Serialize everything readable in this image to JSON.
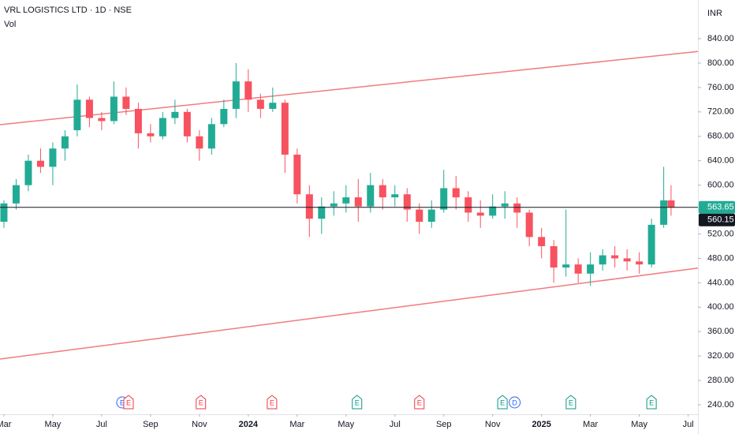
{
  "chart_data": {
    "type": "candlestick",
    "title": "VRL LOGISTICS LTD · 1D · NSE",
    "subtitle": "Vol",
    "y_axis_label": "INR",
    "up_color": "#22ab94",
    "down_color": "#f7525f",
    "x": [
      0,
      0.5,
      1,
      1.5,
      2,
      2.5,
      3,
      3.5,
      4,
      4.5,
      5,
      5.5,
      6,
      6.5,
      7,
      7.5,
      8,
      8.5,
      9,
      9.5,
      10,
      10.5,
      11,
      11.5,
      12,
      12.5,
      13,
      13.5,
      14,
      14.5,
      15,
      15.5,
      16,
      16.5,
      17,
      17.5,
      18,
      18.5,
      19,
      19.5,
      20,
      20.5,
      21,
      21.5,
      22,
      22.5,
      23,
      23.5,
      24,
      24.5,
      25,
      25.5,
      26,
      26.5,
      27,
      27.3
    ],
    "open": [
      540,
      570,
      600,
      640,
      630,
      660,
      690,
      740,
      710,
      705,
      745,
      725,
      685,
      680,
      710,
      720,
      680,
      660,
      700,
      725,
      770,
      740,
      725,
      735,
      650,
      585,
      545,
      565,
      570,
      580,
      565,
      600,
      580,
      585,
      560,
      540,
      560,
      595,
      580,
      555,
      550,
      565,
      570,
      555,
      515,
      500,
      465,
      470,
      455,
      470,
      485,
      480,
      475,
      470,
      535,
      575
    ],
    "high": [
      575,
      610,
      650,
      660,
      670,
      690,
      765,
      745,
      720,
      770,
      760,
      735,
      700,
      720,
      740,
      725,
      690,
      710,
      740,
      800,
      790,
      750,
      760,
      740,
      660,
      600,
      580,
      590,
      600,
      610,
      620,
      610,
      600,
      595,
      570,
      575,
      625,
      615,
      590,
      575,
      585,
      590,
      580,
      560,
      530,
      510,
      560,
      480,
      490,
      495,
      500,
      495,
      490,
      545,
      630,
      600
    ],
    "low": [
      530,
      560,
      590,
      620,
      600,
      640,
      680,
      695,
      690,
      700,
      715,
      660,
      670,
      675,
      700,
      670,
      640,
      650,
      695,
      710,
      720,
      710,
      720,
      620,
      570,
      515,
      520,
      550,
      555,
      540,
      555,
      560,
      565,
      540,
      520,
      530,
      555,
      560,
      540,
      530,
      545,
      545,
      530,
      500,
      480,
      440,
      450,
      440,
      435,
      460,
      465,
      460,
      455,
      465,
      530,
      550
    ],
    "close": [
      570,
      600,
      640,
      630,
      660,
      680,
      740,
      710,
      705,
      745,
      725,
      685,
      680,
      710,
      720,
      680,
      660,
      700,
      725,
      770,
      740,
      725,
      735,
      650,
      585,
      545,
      565,
      570,
      580,
      565,
      600,
      580,
      585,
      560,
      540,
      560,
      595,
      580,
      555,
      550,
      565,
      570,
      555,
      515,
      500,
      465,
      470,
      455,
      470,
      485,
      480,
      475,
      470,
      535,
      575,
      563.65
    ],
    "xlim": [
      -0.16,
      28.4
    ],
    "xticks": [
      {
        "value": 0,
        "label": "Mar"
      },
      {
        "value": 2,
        "label": "May"
      },
      {
        "value": 4,
        "label": "Jul"
      },
      {
        "value": 6,
        "label": "Sep"
      },
      {
        "value": 8,
        "label": "Nov"
      },
      {
        "value": 10,
        "label": "2024"
      },
      {
        "value": 12,
        "label": "Mar"
      },
      {
        "value": 14,
        "label": "May"
      },
      {
        "value": 16,
        "label": "Jul"
      },
      {
        "value": 18,
        "label": "Sep"
      },
      {
        "value": 20,
        "label": "Nov"
      },
      {
        "value": 22,
        "label": "2025"
      },
      {
        "value": 24,
        "label": "Mar"
      },
      {
        "value": 26,
        "label": "May"
      },
      {
        "value": 28,
        "label": "Jul"
      }
    ],
    "ylim": [
      224.5,
      903.4
    ],
    "yticks": [
      {
        "value": 240,
        "label": "240.00"
      },
      {
        "value": 280,
        "label": "280.00"
      },
      {
        "value": 320,
        "label": "320.00"
      },
      {
        "value": 360,
        "label": "360.00"
      },
      {
        "value": 400,
        "label": "400.00"
      },
      {
        "value": 440,
        "label": "440.00"
      },
      {
        "value": 480,
        "label": "480.00"
      },
      {
        "value": 520,
        "label": "520.00"
      },
      {
        "value": 560,
        "label": "560.00"
      },
      {
        "value": 600,
        "label": "600.00"
      },
      {
        "value": 640,
        "label": "640.00"
      },
      {
        "value": 680,
        "label": "680.00"
      },
      {
        "value": 720,
        "label": "720.00"
      },
      {
        "value": 760,
        "label": "760.00"
      },
      {
        "value": 800,
        "label": "800.00"
      },
      {
        "value": 840,
        "label": "840.00"
      }
    ],
    "trendlines": [
      {
        "color": "#f07c80",
        "x": [
          -0.16,
          28.4
        ],
        "y": [
          699,
          819
        ]
      },
      {
        "color": "#f07c80",
        "x": [
          -0.16,
          28.4
        ],
        "y": [
          315,
          464
        ]
      }
    ],
    "price_lines": [
      {
        "value": 563.65,
        "color": "#22ab94"
      },
      {
        "value": 560.15,
        "color": "#131722"
      }
    ],
    "events": [
      {
        "x": 4.84,
        "label": "E",
        "color": "#2962ff"
      },
      {
        "x": 5.1,
        "label": "E",
        "color": "#f23645"
      },
      {
        "x": 8.06,
        "label": "E",
        "color": "#f23645"
      },
      {
        "x": 10.97,
        "label": "E",
        "color": "#f23645"
      },
      {
        "x": 14.45,
        "label": "E",
        "color": "#089981"
      },
      {
        "x": 17,
        "label": "E",
        "color": "#f23645"
      },
      {
        "x": 20.4,
        "label": "E",
        "color": "#089981"
      },
      {
        "x": 20.9,
        "label": "D",
        "color": "#2962ff"
      },
      {
        "x": 23.2,
        "label": "E",
        "color": "#089981"
      },
      {
        "x": 26.5,
        "label": "E",
        "color": "#089981"
      }
    ]
  }
}
